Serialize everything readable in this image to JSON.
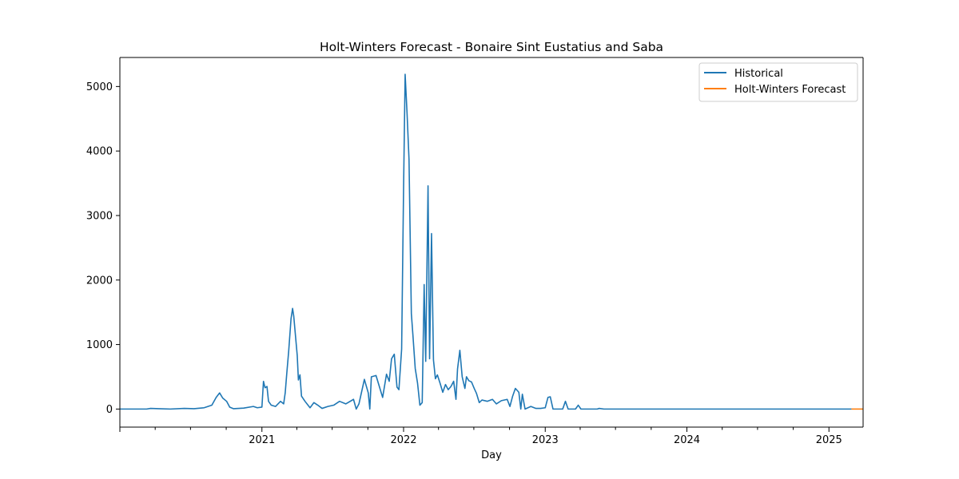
{
  "chart_data": {
    "type": "line",
    "title": "Holt-Winters Forecast - Bonaire Sint Eustatius and Saba",
    "xlabel": "Day",
    "ylabel": "",
    "x_ticks": [
      "2021",
      "2022",
      "2023",
      "2024",
      "2025"
    ],
    "y_ticks": [
      "0",
      "1000",
      "2000",
      "3000",
      "4000",
      "5000"
    ],
    "ylim": [
      -280,
      5450
    ],
    "xlim": [
      "2020-01-01",
      "2025-03-30"
    ],
    "grid": false,
    "legend_position": "top-right",
    "legend": [
      "Historical",
      "Holt-Winters Forecast"
    ],
    "colors": {
      "historical": "#1f77b4",
      "forecast": "#ff7f0e"
    },
    "series": [
      {
        "name": "Historical",
        "points": [
          [
            "2020-01-01",
            0
          ],
          [
            "2020-03-10",
            0
          ],
          [
            "2020-03-20",
            10
          ],
          [
            "2020-04-10",
            5
          ],
          [
            "2020-05-10",
            0
          ],
          [
            "2020-06-15",
            10
          ],
          [
            "2020-07-10",
            5
          ],
          [
            "2020-08-05",
            20
          ],
          [
            "2020-08-25",
            60
          ],
          [
            "2020-09-05",
            180
          ],
          [
            "2020-09-14",
            250
          ],
          [
            "2020-09-22",
            170
          ],
          [
            "2020-10-02",
            120
          ],
          [
            "2020-10-10",
            30
          ],
          [
            "2020-10-20",
            5
          ],
          [
            "2020-11-15",
            15
          ],
          [
            "2020-12-10",
            40
          ],
          [
            "2020-12-20",
            20
          ],
          [
            "2021-01-01",
            30
          ],
          [
            "2021-01-05",
            430
          ],
          [
            "2021-01-09",
            330
          ],
          [
            "2021-01-14",
            350
          ],
          [
            "2021-01-18",
            120
          ],
          [
            "2021-01-25",
            60
          ],
          [
            "2021-02-05",
            40
          ],
          [
            "2021-02-18",
            120
          ],
          [
            "2021-02-26",
            80
          ],
          [
            "2021-03-02",
            250
          ],
          [
            "2021-03-06",
            550
          ],
          [
            "2021-03-11",
            900
          ],
          [
            "2021-03-17",
            1400
          ],
          [
            "2021-03-21",
            1560
          ],
          [
            "2021-03-24",
            1440
          ],
          [
            "2021-03-29",
            1100
          ],
          [
            "2021-04-02",
            830
          ],
          [
            "2021-04-05",
            450
          ],
          [
            "2021-04-09",
            530
          ],
          [
            "2021-04-13",
            200
          ],
          [
            "2021-04-22",
            120
          ],
          [
            "2021-05-05",
            20
          ],
          [
            "2021-05-15",
            100
          ],
          [
            "2021-05-25",
            60
          ],
          [
            "2021-06-05",
            10
          ],
          [
            "2021-06-20",
            40
          ],
          [
            "2021-07-05",
            60
          ],
          [
            "2021-07-20",
            120
          ],
          [
            "2021-08-05",
            80
          ],
          [
            "2021-08-25",
            150
          ],
          [
            "2021-09-01",
            0
          ],
          [
            "2021-09-08",
            80
          ],
          [
            "2021-09-22",
            460
          ],
          [
            "2021-10-02",
            250
          ],
          [
            "2021-10-06",
            0
          ],
          [
            "2021-10-10",
            500
          ],
          [
            "2021-10-22",
            520
          ],
          [
            "2021-11-01",
            320
          ],
          [
            "2021-11-08",
            180
          ],
          [
            "2021-11-18",
            540
          ],
          [
            "2021-11-25",
            430
          ],
          [
            "2021-12-01",
            780
          ],
          [
            "2021-12-08",
            850
          ],
          [
            "2021-12-15",
            340
          ],
          [
            "2021-12-20",
            300
          ],
          [
            "2021-12-27",
            930
          ],
          [
            "2022-01-01",
            3430
          ],
          [
            "2022-01-05",
            5190
          ],
          [
            "2022-01-10",
            4580
          ],
          [
            "2022-01-15",
            3870
          ],
          [
            "2022-01-21",
            1480
          ],
          [
            "2022-01-25",
            1150
          ],
          [
            "2022-01-31",
            630
          ],
          [
            "2022-02-06",
            400
          ],
          [
            "2022-02-12",
            60
          ],
          [
            "2022-02-18",
            100
          ],
          [
            "2022-02-23",
            1930
          ],
          [
            "2022-02-27",
            740
          ],
          [
            "2022-03-05",
            3460
          ],
          [
            "2022-03-09",
            780
          ],
          [
            "2022-03-14",
            2720
          ],
          [
            "2022-03-19",
            760
          ],
          [
            "2022-03-24",
            470
          ],
          [
            "2022-03-29",
            530
          ],
          [
            "2022-04-05",
            400
          ],
          [
            "2022-04-12",
            260
          ],
          [
            "2022-04-19",
            380
          ],
          [
            "2022-04-26",
            300
          ],
          [
            "2022-05-03",
            350
          ],
          [
            "2022-05-10",
            430
          ],
          [
            "2022-05-16",
            150
          ],
          [
            "2022-05-20",
            620
          ],
          [
            "2022-05-26",
            910
          ],
          [
            "2022-06-01",
            500
          ],
          [
            "2022-06-08",
            320
          ],
          [
            "2022-06-12",
            500
          ],
          [
            "2022-06-18",
            440
          ],
          [
            "2022-06-25",
            420
          ],
          [
            "2022-07-02",
            320
          ],
          [
            "2022-07-08",
            240
          ],
          [
            "2022-07-15",
            100
          ],
          [
            "2022-07-22",
            140
          ],
          [
            "2022-08-05",
            120
          ],
          [
            "2022-08-18",
            150
          ],
          [
            "2022-08-28",
            80
          ],
          [
            "2022-09-10",
            130
          ],
          [
            "2022-09-25",
            150
          ],
          [
            "2022-10-02",
            40
          ],
          [
            "2022-10-09",
            200
          ],
          [
            "2022-10-16",
            320
          ],
          [
            "2022-10-25",
            260
          ],
          [
            "2022-10-30",
            0
          ],
          [
            "2022-11-03",
            230
          ],
          [
            "2022-11-10",
            0
          ],
          [
            "2022-11-25",
            40
          ],
          [
            "2022-12-08",
            10
          ],
          [
            "2022-12-20",
            10
          ],
          [
            "2023-01-01",
            20
          ],
          [
            "2023-01-08",
            180
          ],
          [
            "2023-01-14",
            190
          ],
          [
            "2023-01-21",
            0
          ],
          [
            "2023-02-15",
            0
          ],
          [
            "2023-02-22",
            120
          ],
          [
            "2023-03-01",
            0
          ],
          [
            "2023-03-20",
            0
          ],
          [
            "2023-03-27",
            60
          ],
          [
            "2023-04-03",
            0
          ],
          [
            "2023-05-15",
            0
          ],
          [
            "2023-05-20",
            10
          ],
          [
            "2023-06-01",
            0
          ],
          [
            "2023-12-31",
            0
          ],
          [
            "2024-12-31",
            0
          ],
          [
            "2025-02-28",
            0
          ]
        ]
      },
      {
        "name": "Holt-Winters Forecast",
        "points": [
          [
            "2025-02-28",
            0
          ],
          [
            "2025-03-30",
            0
          ]
        ]
      }
    ]
  }
}
